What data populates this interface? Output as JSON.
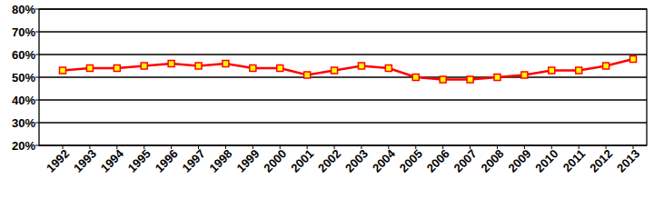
{
  "chart_data": {
    "type": "line",
    "categories": [
      "1992",
      "1993",
      "1994",
      "1995",
      "1996",
      "1997",
      "1998",
      "1999",
      "2000",
      "2001",
      "2002",
      "2003",
      "2004",
      "2005",
      "2006",
      "2007",
      "2008",
      "2009",
      "2010",
      "2011",
      "2012",
      "2013"
    ],
    "values": [
      53,
      54,
      54,
      55,
      56,
      55,
      56,
      54,
      54,
      51,
      53,
      55,
      54,
      50,
      49,
      49,
      50,
      51,
      53,
      53,
      55,
      58
    ],
    "color": "#ff0000",
    "marker": "square",
    "ylim": [
      20,
      80
    ],
    "yticks": [
      {
        "value": 20,
        "label": "20%"
      },
      {
        "value": 30,
        "label": "30%"
      },
      {
        "value": 40,
        "label": "40%"
      },
      {
        "value": 50,
        "label": "50%"
      },
      {
        "value": 60,
        "label": "60%"
      },
      {
        "value": 70,
        "label": "70%"
      },
      {
        "value": 80,
        "label": "80%"
      }
    ],
    "grid": true
  }
}
